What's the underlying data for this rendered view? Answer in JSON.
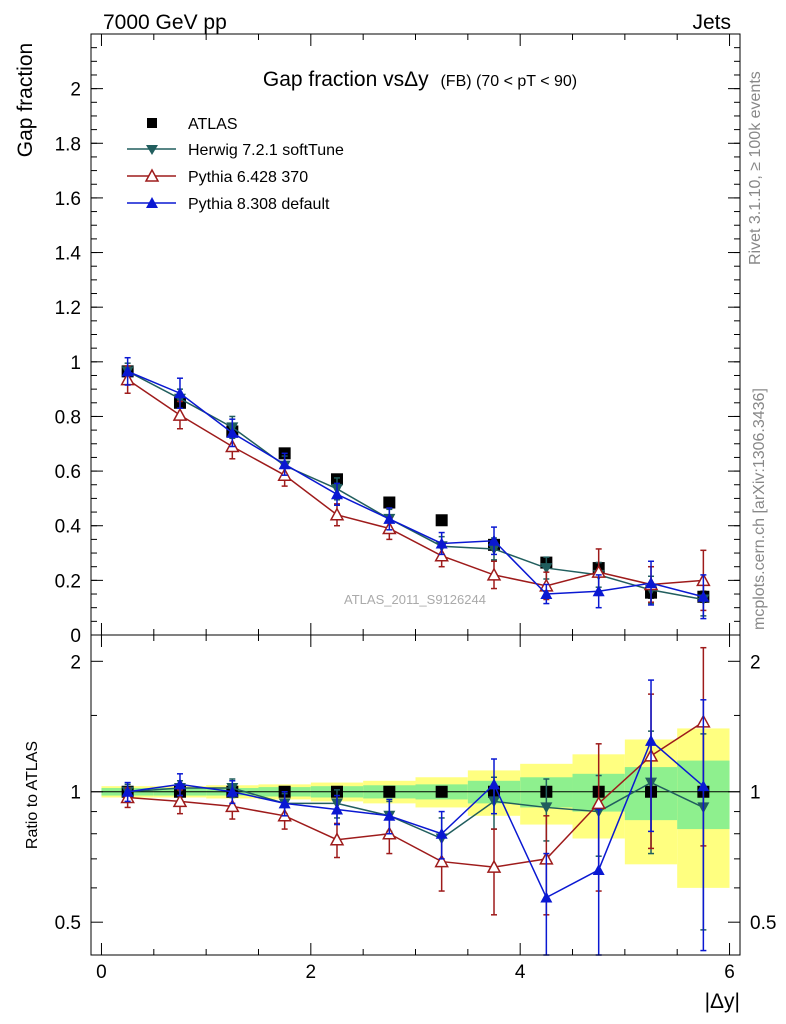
{
  "header": {
    "left": "7000 GeV pp",
    "right": "Jets"
  },
  "side_labels": {
    "rivet": "Rivet 3.1.10, ≥ 100k events",
    "mcplots": "mcplots.cern.ch [arXiv:1306.3436]"
  },
  "watermark": "ATLAS_2011_S9126244",
  "chart_data": {
    "type": "line",
    "title": "Gap fraction vsΔy (FB) (70 < pT <  90)",
    "title_parts": {
      "main": "Gap fraction vsΔy",
      "sub": "(FB) (70 < pT <  90)"
    },
    "xlabel": "|Δy|",
    "xlim": [
      -0.1,
      6.1
    ],
    "x_ticks": [
      0,
      2,
      4,
      6
    ],
    "x": [
      0.25,
      0.75,
      1.25,
      1.75,
      2.25,
      2.75,
      3.25,
      3.75,
      4.25,
      4.75,
      5.25,
      5.75
    ],
    "main_panel": {
      "ylabel": "Gap fraction",
      "ylim": [
        0,
        2.2
      ],
      "y_ticks": [
        0,
        0.2,
        0.4,
        0.6,
        0.8,
        1,
        1.2,
        1.4,
        1.6,
        1.8,
        2
      ],
      "y_tick_labels": [
        "0",
        "0.2",
        "0.4",
        "0.6",
        "0.8",
        "1",
        "1.2",
        "1.4",
        "1.6",
        "1.8",
        "2"
      ]
    },
    "ratio_panel": {
      "ylabel": "Ratio to ATLAS",
      "scale": "log",
      "ylim": [
        0.42,
        2.3
      ],
      "y_ticks": [
        0.5,
        1,
        2
      ],
      "y_tick_labels": [
        "0.5",
        "1",
        "2"
      ],
      "band_inner": [
        0.02,
        0.02,
        0.02,
        0.025,
        0.03,
        0.035,
        0.04,
        0.06,
        0.08,
        0.1,
        0.14,
        0.18
      ],
      "band_outer": [
        0.03,
        0.03,
        0.035,
        0.04,
        0.05,
        0.06,
        0.08,
        0.12,
        0.16,
        0.22,
        0.32,
        0.4
      ]
    },
    "series": [
      {
        "name": "ATLAS",
        "color": "#000000",
        "marker": "square",
        "values": [
          0.965,
          0.85,
          0.745,
          0.665,
          0.57,
          0.485,
          0.42,
          0.33,
          0.265,
          0.245,
          0.155,
          0.14
        ],
        "errors": [
          0.01,
          0.01,
          0.01,
          0.012,
          0.012,
          0.012,
          0.015,
          0.015,
          0.015,
          0.02,
          0.02,
          0.02
        ]
      },
      {
        "name": "Herwig 7.2.1 softTune",
        "color": "#215e5e",
        "marker": "triangle-down",
        "values": [
          0.965,
          0.865,
          0.76,
          0.62,
          0.535,
          0.425,
          0.325,
          0.315,
          0.245,
          0.22,
          0.165,
          0.13
        ],
        "errors": [
          0.03,
          0.035,
          0.04,
          0.035,
          0.04,
          0.035,
          0.035,
          0.04,
          0.04,
          0.045,
          0.05,
          0.06
        ],
        "ratio": [
          1.0,
          1.02,
          1.02,
          0.94,
          0.94,
          0.88,
          0.78,
          0.95,
          0.92,
          0.9,
          1.05,
          0.92
        ],
        "ratio_errors": [
          0.04,
          0.04,
          0.05,
          0.05,
          0.07,
          0.07,
          0.09,
          0.13,
          0.15,
          0.19,
          0.33,
          0.44
        ]
      },
      {
        "name": "Pythia 6.428 370",
        "color": "#9e1b1b",
        "marker": "triangle-up-open",
        "values": [
          0.935,
          0.805,
          0.69,
          0.585,
          0.44,
          0.39,
          0.29,
          0.22,
          0.18,
          0.23,
          0.185,
          0.2
        ],
        "errors": [
          0.05,
          0.05,
          0.045,
          0.04,
          0.04,
          0.04,
          0.04,
          0.05,
          0.05,
          0.085,
          0.065,
          0.11
        ],
        "ratio": [
          0.97,
          0.95,
          0.925,
          0.88,
          0.775,
          0.8,
          0.69,
          0.67,
          0.7,
          0.94,
          1.21,
          1.45
        ],
        "ratio_errors": [
          0.05,
          0.06,
          0.06,
          0.06,
          0.07,
          0.08,
          0.1,
          0.15,
          0.18,
          0.35,
          0.47,
          0.7
        ]
      },
      {
        "name": "Pythia 8.308 default",
        "color": "#0a18d2",
        "marker": "triangle-up",
        "values": [
          0.965,
          0.885,
          0.74,
          0.625,
          0.515,
          0.425,
          0.335,
          0.345,
          0.15,
          0.16,
          0.19,
          0.14
        ],
        "errors": [
          0.05,
          0.055,
          0.05,
          0.04,
          0.04,
          0.04,
          0.04,
          0.05,
          0.035,
          0.06,
          0.08,
          0.08
        ],
        "ratio": [
          1.0,
          1.04,
          1.0,
          0.94,
          0.91,
          0.88,
          0.8,
          1.04,
          0.57,
          0.66,
          1.31,
          1.03
        ],
        "ratio_errors": [
          0.05,
          0.06,
          0.06,
          0.06,
          0.07,
          0.08,
          0.1,
          0.15,
          0.15,
          0.25,
          0.5,
          0.6
        ]
      }
    ]
  }
}
